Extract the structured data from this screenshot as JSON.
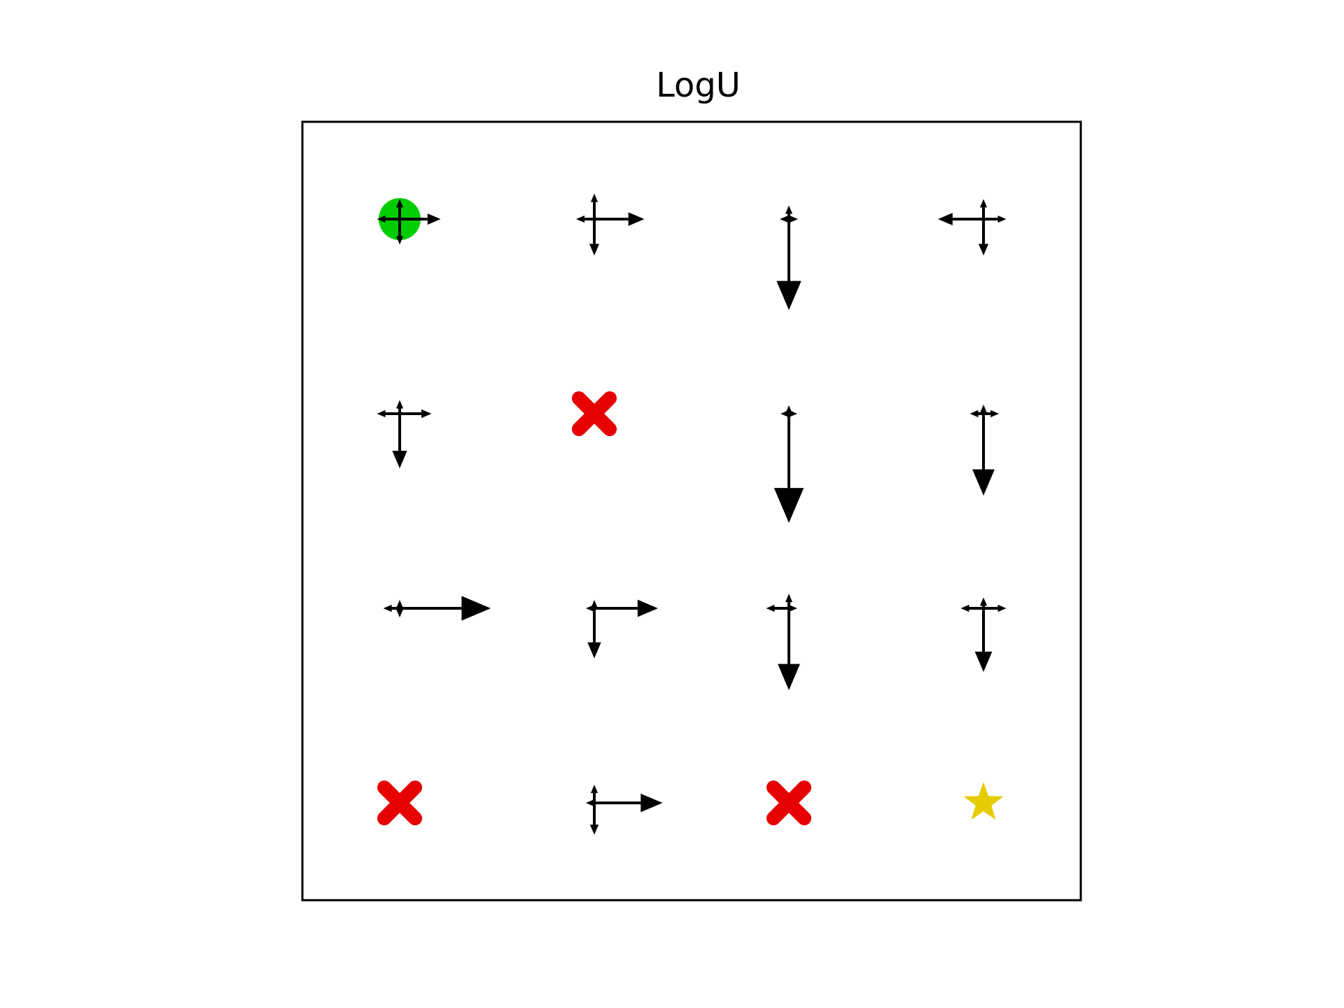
{
  "title": "LogU",
  "grid": {
    "rows": 4,
    "cols": 4,
    "colors": {
      "frame": "#000000",
      "arrow": "#000000",
      "start": "#00cc00",
      "hole": "#e60000",
      "goal": "#e6cc00"
    },
    "cells": [
      {
        "row": 0,
        "col": 0,
        "type": "start",
        "marker": "circle",
        "arrows": {
          "up": 0.22,
          "down": 0.28,
          "left": 0.25,
          "right": 0.45
        }
      },
      {
        "row": 0,
        "col": 1,
        "type": "state",
        "arrows": {
          "up": 0.28,
          "down": 0.4,
          "left": 0.2,
          "right": 0.55
        }
      },
      {
        "row": 0,
        "col": 2,
        "type": "state",
        "arrows": {
          "up": 0.15,
          "down": 1.0,
          "left": 0.1,
          "right": 0.1
        }
      },
      {
        "row": 0,
        "col": 3,
        "type": "state",
        "arrows": {
          "up": 0.22,
          "down": 0.4,
          "left": 0.5,
          "right": 0.25
        }
      },
      {
        "row": 1,
        "col": 0,
        "type": "state",
        "arrows": {
          "up": 0.15,
          "down": 0.6,
          "left": 0.25,
          "right": 0.35
        }
      },
      {
        "row": 1,
        "col": 1,
        "type": "hole",
        "marker": "x"
      },
      {
        "row": 1,
        "col": 2,
        "type": "state",
        "arrows": {
          "up": 0.08,
          "down": 1.2,
          "left": 0.04,
          "right": 0.04
        }
      },
      {
        "row": 1,
        "col": 3,
        "type": "state",
        "arrows": {
          "up": 0.1,
          "down": 0.9,
          "left": 0.15,
          "right": 0.17
        }
      },
      {
        "row": 2,
        "col": 0,
        "type": "state",
        "arrows": {
          "up": 0.08,
          "down": 0.1,
          "left": 0.18,
          "right": 1.0
        }
      },
      {
        "row": 2,
        "col": 1,
        "type": "state",
        "arrows": {
          "up": 0.03,
          "down": 0.55,
          "left": 0.03,
          "right": 0.7
        }
      },
      {
        "row": 2,
        "col": 2,
        "type": "state",
        "arrows": {
          "up": 0.16,
          "down": 0.9,
          "left": 0.25,
          "right": 0.05
        }
      },
      {
        "row": 2,
        "col": 3,
        "type": "state",
        "arrows": {
          "up": 0.12,
          "down": 0.7,
          "left": 0.25,
          "right": 0.25
        }
      },
      {
        "row": 3,
        "col": 0,
        "type": "hole",
        "marker": "x"
      },
      {
        "row": 3,
        "col": 1,
        "type": "state",
        "arrows": {
          "up": 0.2,
          "down": 0.35,
          "left": 0.03,
          "right": 0.75
        }
      },
      {
        "row": 3,
        "col": 2,
        "type": "hole",
        "marker": "x"
      },
      {
        "row": 3,
        "col": 3,
        "type": "goal",
        "marker": "star"
      }
    ]
  }
}
